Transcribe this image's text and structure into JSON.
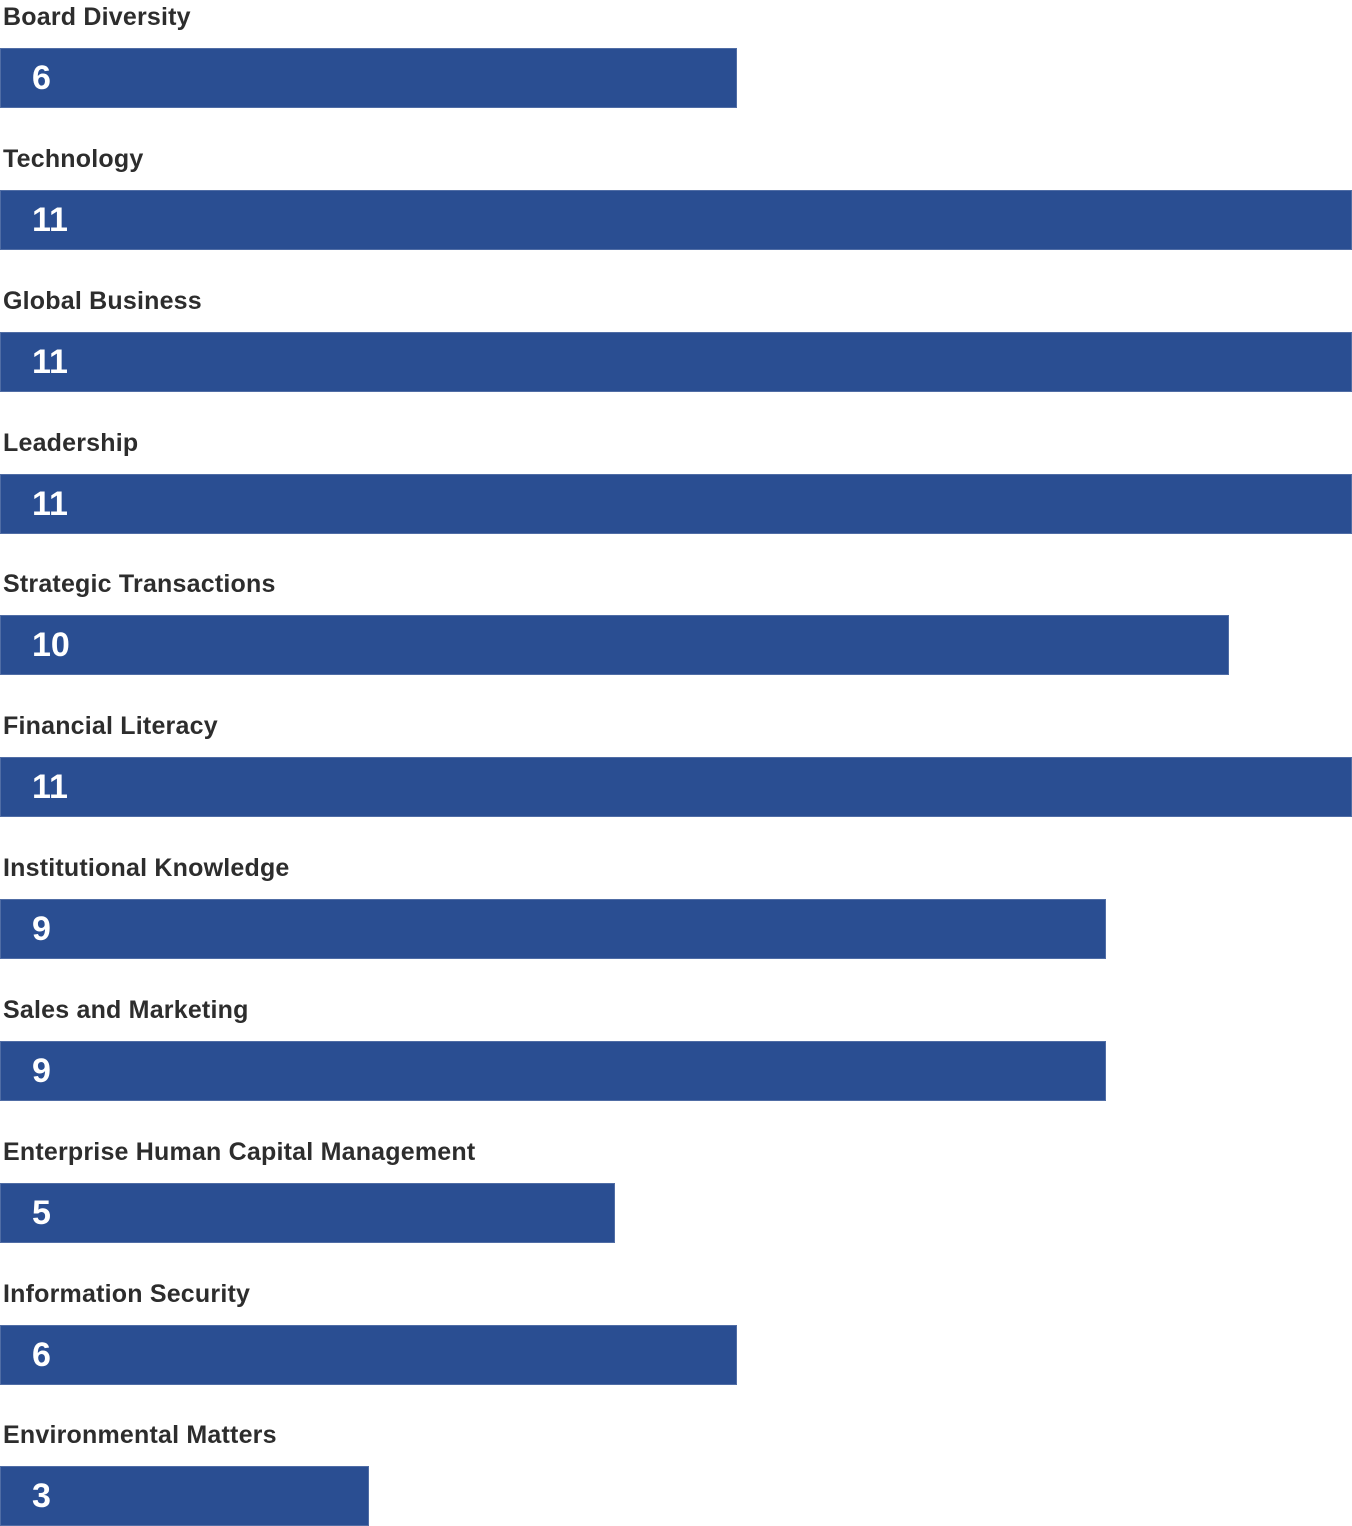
{
  "chart_data": {
    "type": "bar",
    "orientation": "horizontal",
    "title": "",
    "categories": [
      "Board Diversity",
      "Technology",
      "Global Business",
      "Leadership",
      "Strategic Transactions",
      "Financial Literacy",
      "Institutional Knowledge",
      "Sales and Marketing",
      "Enterprise Human Capital Management",
      "Information Security",
      "Environmental Matters"
    ],
    "values": [
      6,
      11,
      11,
      11,
      10,
      11,
      9,
      9,
      5,
      6,
      3
    ],
    "xlim": [
      0,
      11
    ],
    "value_labels_inside_bar": true,
    "bar_color": "#2a4e92",
    "category_label_color": "#2d2d2d",
    "value_label_color": "#ffffff",
    "background_color": "#ffffff",
    "grid": false,
    "legend": false,
    "axes_visible": false
  }
}
